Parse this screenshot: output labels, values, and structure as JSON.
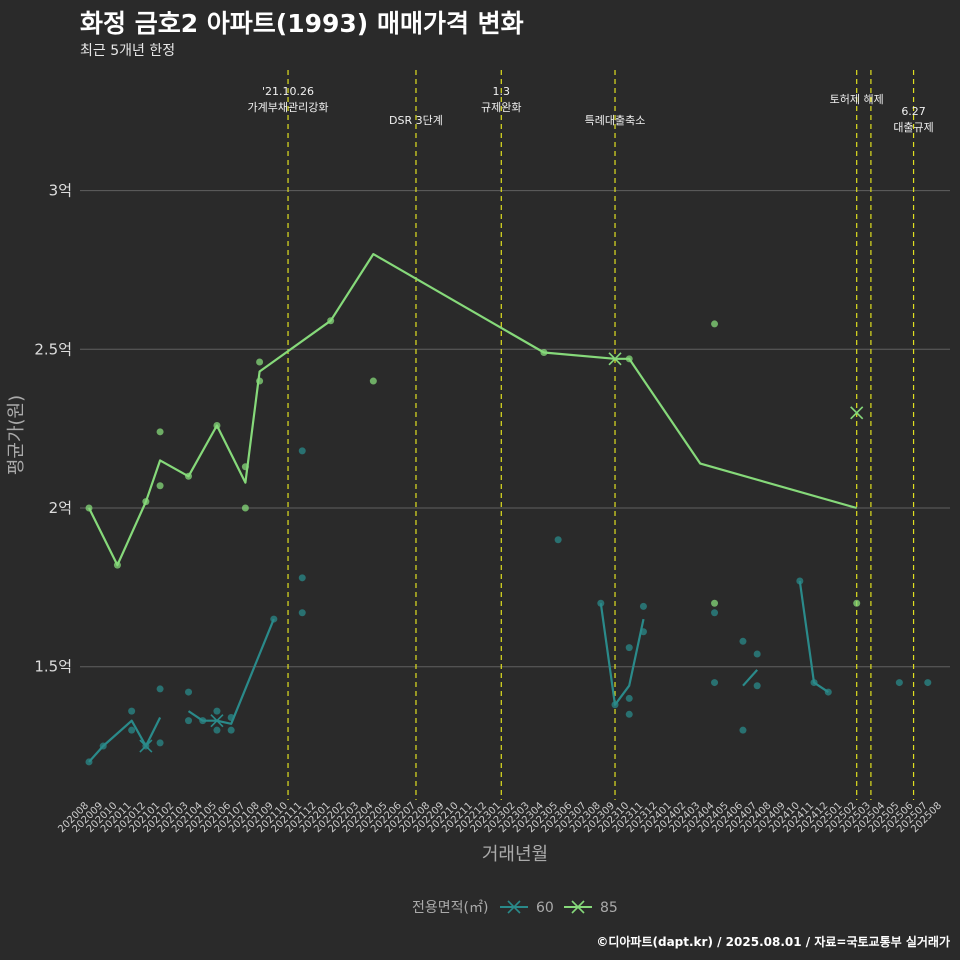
{
  "title": "화정 금호2 아파트(1993) 매매가격 변화",
  "subtitle": "최근 5개년 한정",
  "caption": "©디아파트(dapt.kr) / 2025.08.01 / 자료=국토교통부 실거래가",
  "colors": {
    "s60": "#2a8a8a",
    "s85": "#86d97a",
    "event": "#e0e020",
    "grid": "#606060",
    "background": "#2a2a2a"
  },
  "chart_data": {
    "type": "line",
    "xlabel": "거래년월",
    "ylabel": "평균가(원)",
    "legend_title": "전용면적(㎡)",
    "legend_position": "bottom",
    "grid": true,
    "x_categories": [
      "202008",
      "202009",
      "202010",
      "202011",
      "202012",
      "202101",
      "202102",
      "202103",
      "202104",
      "202105",
      "202106",
      "202107",
      "202108",
      "202109",
      "202110",
      "202111",
      "202112",
      "202201",
      "202202",
      "202203",
      "202204",
      "202205",
      "202206",
      "202207",
      "202208",
      "202209",
      "202210",
      "202211",
      "202212",
      "202301",
      "202302",
      "202303",
      "202304",
      "202305",
      "202306",
      "202307",
      "202308",
      "202309",
      "202310",
      "202311",
      "202312",
      "202401",
      "202402",
      "202403",
      "202404",
      "202405",
      "202406",
      "202407",
      "202408",
      "202409",
      "202410",
      "202411",
      "202412",
      "202501",
      "202502",
      "202503",
      "202504",
      "202505",
      "202506",
      "202507",
      "202508"
    ],
    "yticks": [
      {
        "value": 1.5,
        "label": "1.5억"
      },
      {
        "value": 2.0,
        "label": "2억"
      },
      {
        "value": 2.5,
        "label": "2.5억"
      },
      {
        "value": 3.0,
        "label": "3억"
      }
    ],
    "ylim": [
      1.08,
      3.38
    ],
    "events": [
      {
        "x": "202110",
        "label_lines": [
          "'21.10.26",
          "가계부채관리강화"
        ],
        "row": 0
      },
      {
        "x": "202207",
        "label_lines": [
          "DSR 3단계"
        ],
        "row": 1
      },
      {
        "x": "202301",
        "label_lines": [
          "1.3",
          "규제완화"
        ],
        "row": 0
      },
      {
        "x": "202309",
        "label_lines": [
          "특례대출축소"
        ],
        "row": 1
      },
      {
        "x": "202502",
        "label_lines": [
          "토허제 해제"
        ],
        "row": 0
      },
      {
        "x": "202503",
        "label_lines": [],
        "row": 0
      },
      {
        "x": "202506",
        "label_lines": [
          "6.27",
          "대출규제"
        ],
        "row": 1
      }
    ],
    "series": [
      {
        "name": "60",
        "line_segments": [
          [
            [
              "202008",
              1.2
            ],
            [
              "202009",
              1.25
            ],
            [
              "202011",
              1.33
            ],
            [
              "202012",
              1.25
            ],
            [
              "202101",
              1.34
            ]
          ],
          [
            [
              "202103",
              1.36
            ],
            [
              "202104",
              1.33
            ],
            [
              "202105",
              1.33
            ],
            [
              "202106",
              1.32
            ],
            [
              "202109",
              1.65
            ]
          ],
          [
            [
              "202308",
              1.7
            ],
            [
              "202309",
              1.38
            ],
            [
              "202310",
              1.44
            ],
            [
              "202311",
              1.65
            ]
          ],
          [
            [
              "202406",
              1.44
            ],
            [
              "202407",
              1.49
            ]
          ],
          [
            [
              "202410",
              1.77
            ],
            [
              "202411",
              1.45
            ],
            [
              "202412",
              1.42
            ]
          ]
        ],
        "points": [
          [
            "202008",
            1.2
          ],
          [
            "202009",
            1.25
          ],
          [
            "202011",
            1.36
          ],
          [
            "202011",
            1.3
          ],
          [
            "202012",
            1.25
          ],
          [
            "202101",
            1.43
          ],
          [
            "202101",
            1.26
          ],
          [
            "202103",
            1.42
          ],
          [
            "202103",
            1.33
          ],
          [
            "202104",
            1.33
          ],
          [
            "202105",
            1.36
          ],
          [
            "202105",
            1.3
          ],
          [
            "202106",
            1.34
          ],
          [
            "202106",
            1.3
          ],
          [
            "202109",
            1.65
          ],
          [
            "202111",
            2.18
          ],
          [
            "202111",
            1.78
          ],
          [
            "202111",
            1.67
          ],
          [
            "202305",
            1.9
          ],
          [
            "202308",
            1.7
          ],
          [
            "202309",
            1.38
          ],
          [
            "202310",
            1.56
          ],
          [
            "202310",
            1.4
          ],
          [
            "202310",
            1.35
          ],
          [
            "202311",
            1.69
          ],
          [
            "202311",
            1.61
          ],
          [
            "202404",
            1.67
          ],
          [
            "202404",
            1.45
          ],
          [
            "202406",
            1.58
          ],
          [
            "202406",
            1.3
          ],
          [
            "202407",
            1.54
          ],
          [
            "202407",
            1.44
          ],
          [
            "202410",
            1.77
          ],
          [
            "202411",
            1.45
          ],
          [
            "202412",
            1.42
          ],
          [
            "202505",
            1.45
          ],
          [
            "202507",
            1.45
          ]
        ],
        "x_markers": [
          [
            "202012",
            1.25
          ],
          [
            "202105",
            1.33
          ]
        ]
      },
      {
        "name": "85",
        "line_segments": [
          [
            [
              "202008",
              2.0
            ],
            [
              "202010",
              1.82
            ],
            [
              "202012",
              2.02
            ],
            [
              "202101",
              2.15
            ],
            [
              "202103",
              2.1
            ],
            [
              "202105",
              2.26
            ],
            [
              "202107",
              2.08
            ],
            [
              "202108",
              2.43
            ],
            [
              "202201",
              2.59
            ],
            [
              "202204",
              2.8
            ],
            [
              "202304",
              2.49
            ],
            [
              "202309",
              2.47
            ],
            [
              "202310",
              2.47
            ],
            [
              "202403",
              2.14
            ],
            [
              "202502",
              2.0
            ]
          ]
        ],
        "points": [
          [
            "202008",
            2.0
          ],
          [
            "202010",
            1.82
          ],
          [
            "202012",
            2.02
          ],
          [
            "202101",
            2.24
          ],
          [
            "202101",
            2.07
          ],
          [
            "202103",
            2.1
          ],
          [
            "202105",
            2.26
          ],
          [
            "202107",
            2.13
          ],
          [
            "202107",
            2.0
          ],
          [
            "202108",
            2.46
          ],
          [
            "202108",
            2.4
          ],
          [
            "202201",
            2.59
          ],
          [
            "202204",
            2.4
          ],
          [
            "202304",
            2.49
          ],
          [
            "202310",
            2.47
          ],
          [
            "202404",
            2.58
          ],
          [
            "202404",
            1.7
          ],
          [
            "202502",
            1.7
          ]
        ],
        "x_markers": [
          [
            "202309",
            2.47
          ],
          [
            "202502",
            2.3
          ]
        ]
      }
    ]
  }
}
